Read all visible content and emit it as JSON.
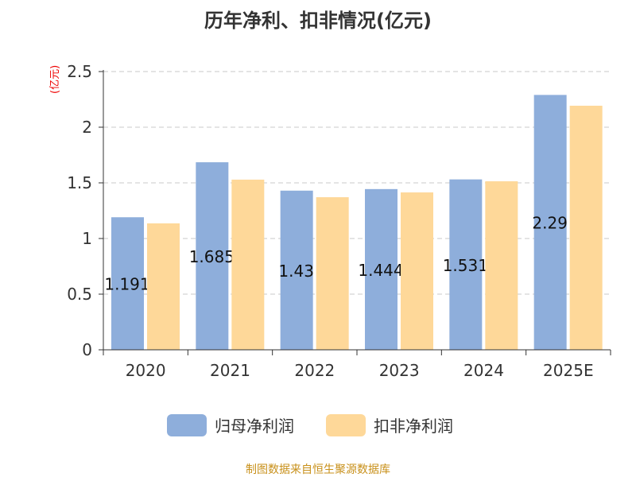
{
  "chart_data": {
    "type": "bar",
    "title": "历年净利、扣非情况(亿元)",
    "ylabel": "(亿元)",
    "categories": [
      "2020",
      "2021",
      "2022",
      "2023",
      "2024",
      "2025E"
    ],
    "ylim": [
      0,
      2.5
    ],
    "yticks": [
      "0",
      "0.5",
      "1",
      "1.5",
      "2",
      "2.5"
    ],
    "grid": true,
    "legend_position": "bottom",
    "series": [
      {
        "name": "归母净利润",
        "color": "#8eaedb",
        "values": [
          1.191,
          1.685,
          1.43,
          1.444,
          1.531,
          2.29
        ],
        "labels": [
          "1.191",
          "1.685",
          "1.43",
          "1.444",
          "1.531",
          "2.29"
        ]
      },
      {
        "name": "扣非净利润",
        "color": "#fed899",
        "values": [
          1.136,
          1.529,
          1.371,
          1.414,
          1.514,
          2.193
        ]
      }
    ]
  },
  "source": "制图数据来自恒生聚源数据库"
}
